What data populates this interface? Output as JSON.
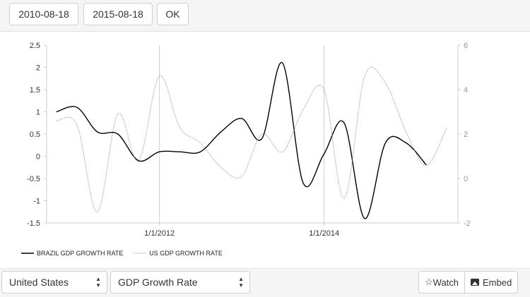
{
  "toolbar": {
    "start_date": "2010-08-18",
    "end_date": "2015-08-18",
    "ok_label": "OK"
  },
  "controls": {
    "country": "United States",
    "indicator": "GDP Growth Rate",
    "watch_label": "Watch",
    "watch_icon": "star-outline-icon",
    "embed_label": "Embed",
    "embed_icon": "image-icon"
  },
  "chart_data": {
    "type": "line",
    "x_ticks": [
      "1/1/2012",
      "1/1/2014"
    ],
    "left_axis": {
      "ylim": [
        -1.5,
        2.5
      ],
      "ticks": [
        "2.5",
        "2",
        "1.5",
        "1",
        "0.5",
        "0",
        "-0.5",
        "-1",
        "-1.5"
      ]
    },
    "right_axis": {
      "ylim": [
        -2,
        6
      ],
      "ticks": [
        "6",
        "4",
        "2",
        "0",
        "-2"
      ]
    },
    "legend_position": "bottom-left",
    "series": [
      {
        "name": "BRAZIL GDP GROWTH RATE",
        "axis": "left",
        "style": "solid",
        "color": "#000000",
        "x": [
          "2010-09-30",
          "2010-12-31",
          "2011-03-31",
          "2011-06-30",
          "2011-09-30",
          "2011-12-31",
          "2012-03-31",
          "2012-06-30",
          "2012-09-30",
          "2012-12-31",
          "2013-03-31",
          "2013-06-30",
          "2013-09-30",
          "2013-12-31",
          "2014-03-31",
          "2014-06-30",
          "2014-09-30",
          "2014-12-31",
          "2015-03-31"
        ],
        "values": [
          1.0,
          1.1,
          0.55,
          0.5,
          -0.1,
          0.1,
          0.1,
          0.1,
          0.55,
          0.85,
          0.4,
          2.1,
          -0.6,
          0.05,
          0.75,
          -1.4,
          0.3,
          0.3,
          -0.2
        ]
      },
      {
        "name": "US GDP GROWTH RATE",
        "axis": "right",
        "style": "dotted",
        "color": "#999999",
        "x": [
          "2010-09-30",
          "2010-12-31",
          "2011-03-31",
          "2011-06-30",
          "2011-09-30",
          "2011-12-31",
          "2012-03-31",
          "2012-06-30",
          "2012-09-30",
          "2012-12-31",
          "2013-03-31",
          "2013-06-30",
          "2013-09-30",
          "2013-12-31",
          "2014-03-31",
          "2014-06-30",
          "2014-09-30",
          "2014-12-31",
          "2015-03-31",
          "2015-06-30"
        ],
        "values": [
          2.6,
          2.4,
          -1.5,
          2.9,
          0.8,
          4.6,
          2.3,
          1.6,
          0.5,
          0.1,
          2.0,
          1.2,
          3.1,
          4.0,
          -0.9,
          4.6,
          4.3,
          2.1,
          0.6,
          2.3
        ]
      }
    ]
  }
}
